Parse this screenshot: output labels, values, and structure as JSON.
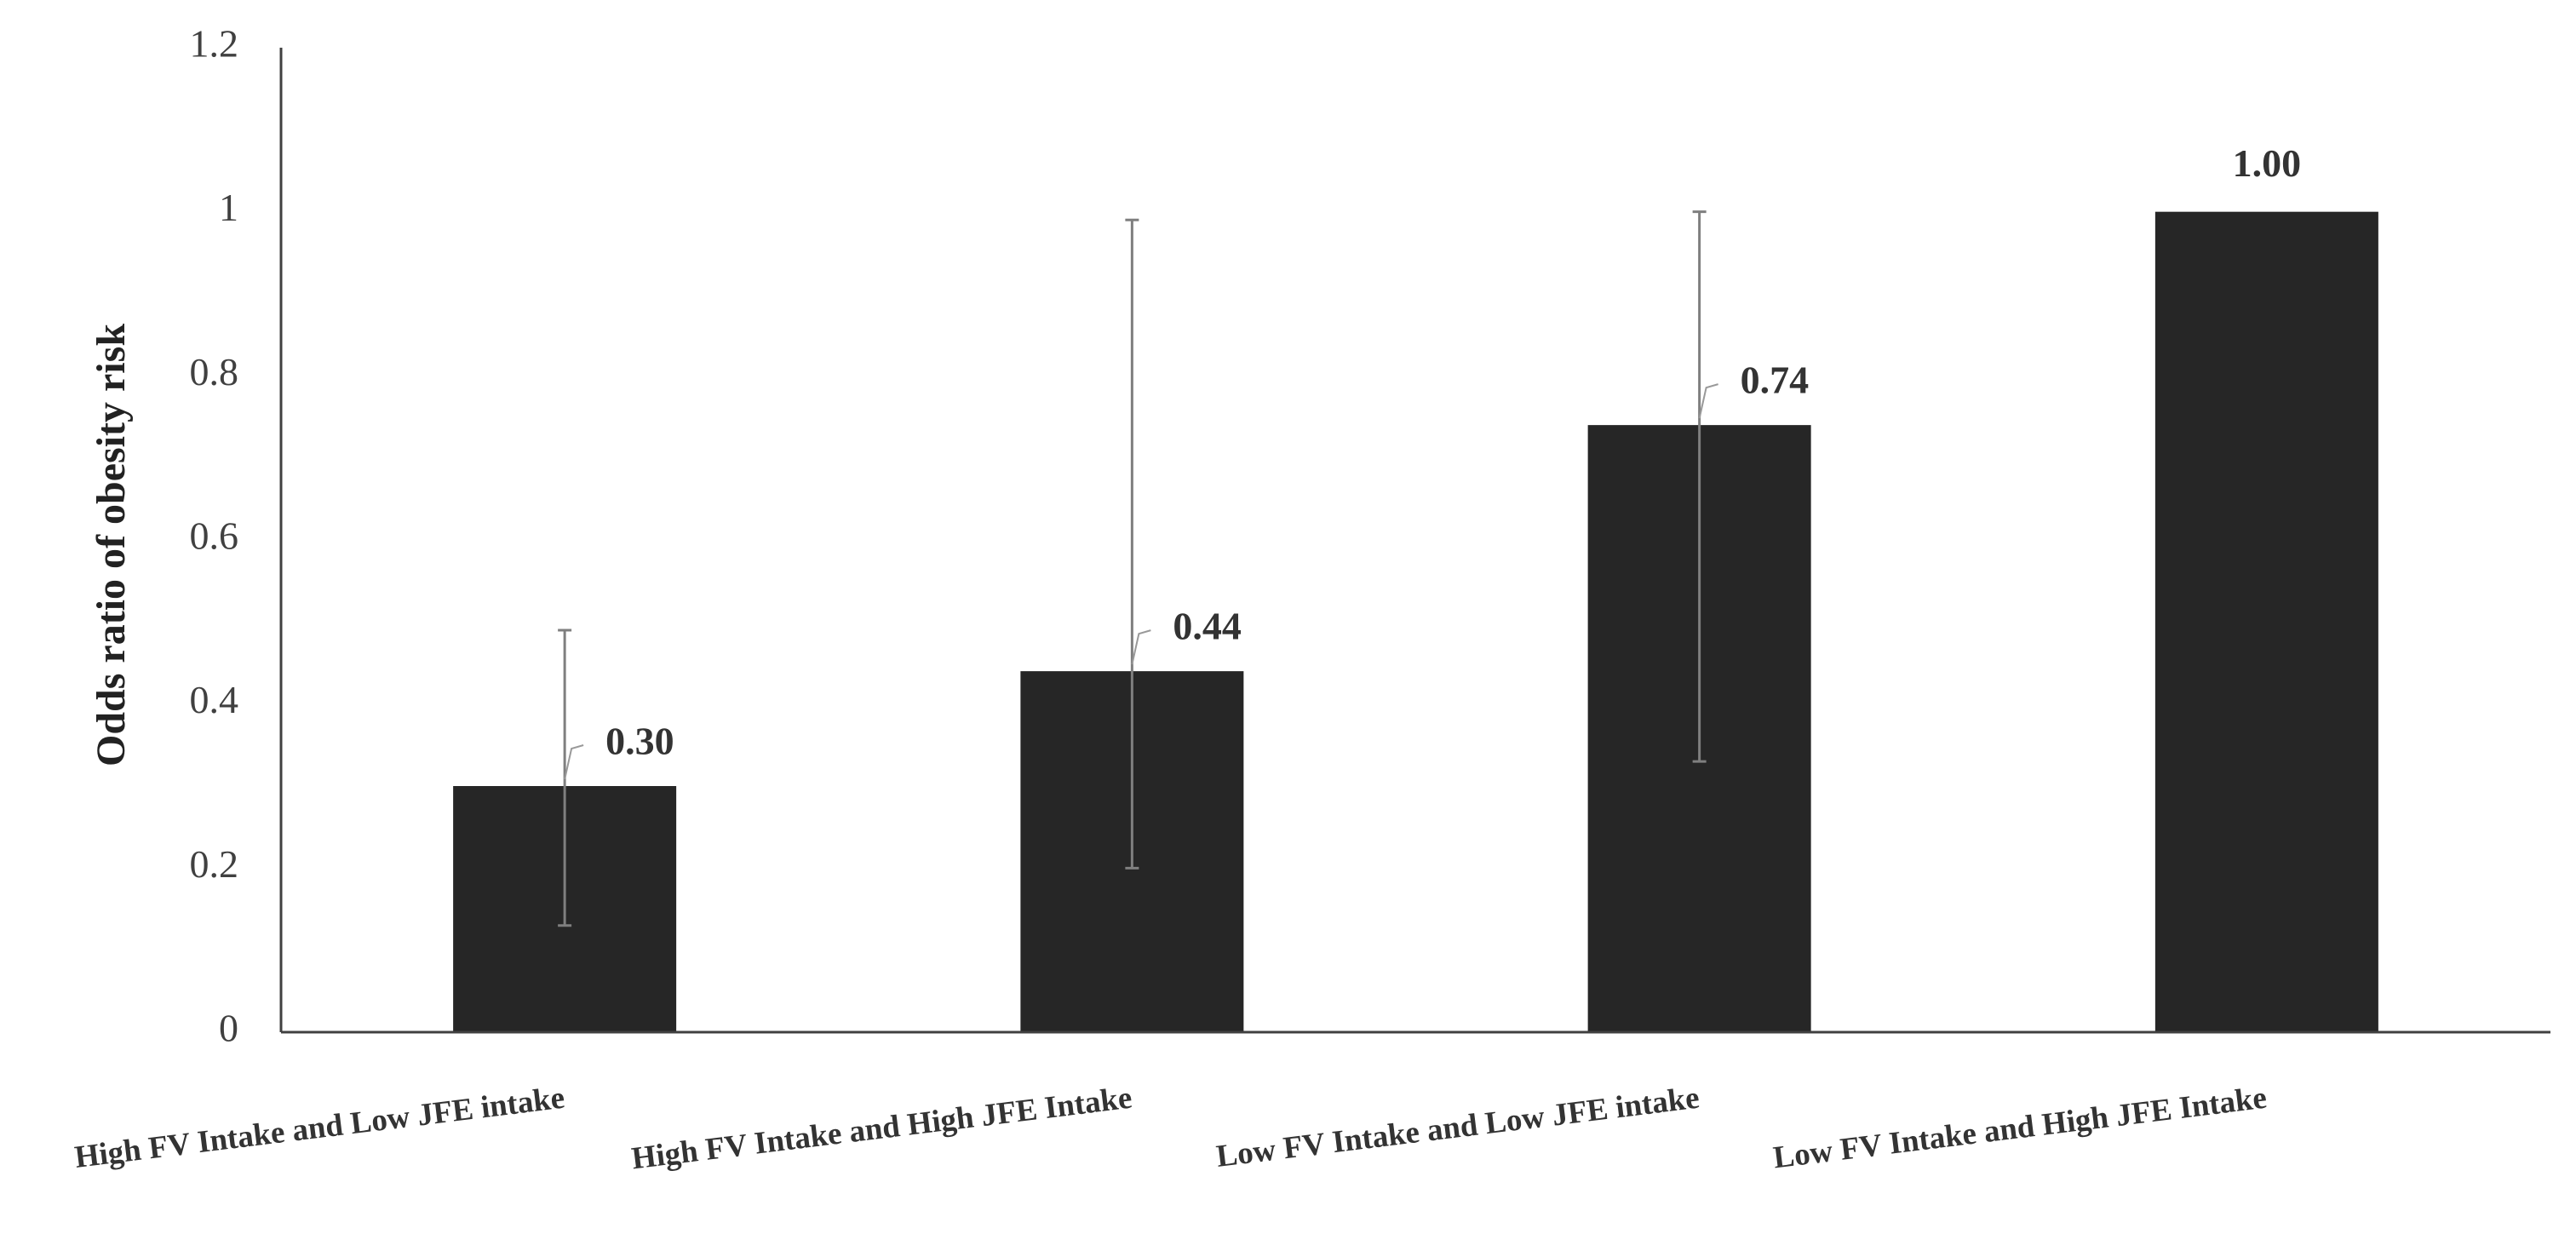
{
  "chart_data": {
    "type": "bar",
    "y_label": "Odds ratio of obesity risk",
    "categories": [
      "High FV Intake and Low JFE intake",
      "High FV Intake and High JFE Intake",
      "Low FV Intake and Low JFE intake",
      "Low FV Intake and High JFE Intake"
    ],
    "values": [
      0.3,
      0.44,
      0.74,
      1.0
    ],
    "value_labels": [
      "0.30",
      "0.44",
      "0.74",
      "1.00"
    ],
    "ci_low": [
      0.13,
      0.2,
      0.33,
      null
    ],
    "ci_high": [
      0.49,
      0.99,
      1.0,
      null
    ],
    "color": "#262626",
    "error_color": "#7f7f7f",
    "ylim": [
      0,
      1.2
    ],
    "yticks": [
      0,
      0.2,
      0.4,
      0.6,
      0.8,
      1,
      1.2
    ],
    "grid": false
  }
}
